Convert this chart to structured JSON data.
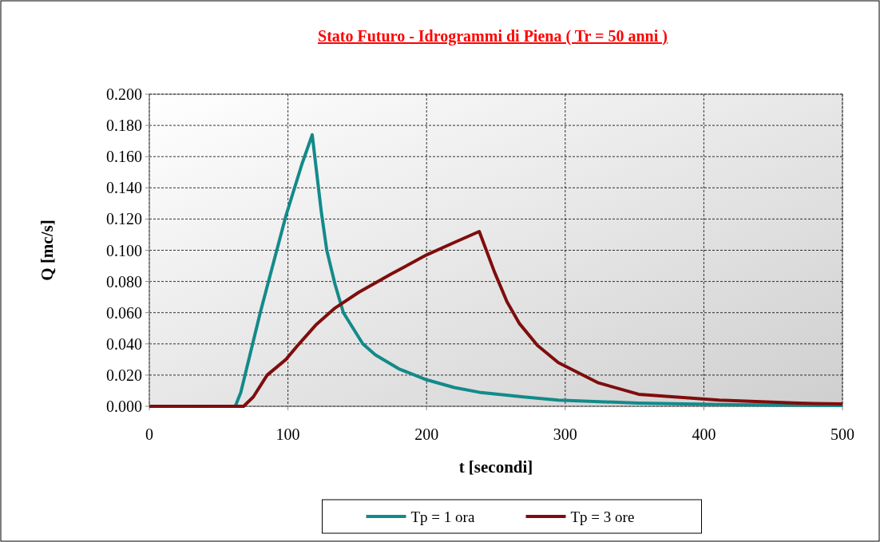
{
  "chart_data": {
    "type": "line",
    "title": "Stato Futuro - Idrogrammi  di Piena ( Tr  = 50 anni )",
    "xlabel": "t [secondi]",
    "ylabel": "Q [mc/s]",
    "xlim": [
      0,
      500
    ],
    "xticks": [
      0,
      100,
      200,
      300,
      400,
      500
    ],
    "ylim": [
      0,
      0.2
    ],
    "yticks": [
      {
        "value": 0,
        "label": "0.000"
      },
      {
        "value": 0.02,
        "label": "0.020"
      },
      {
        "value": 0.04,
        "label": "0.040"
      },
      {
        "value": 0.06,
        "label": "0.060"
      },
      {
        "value": 0.08,
        "label": "0.080"
      },
      {
        "value": 0.1,
        "label": "0.100"
      },
      {
        "value": 0.12,
        "label": "0.120"
      },
      {
        "value": 0.14,
        "label": "0.140"
      },
      {
        "value": 0.16,
        "label": "0.160"
      },
      {
        "value": 0.18,
        "label": "0.180"
      },
      {
        "value": 0.2,
        "label": "0.200"
      }
    ],
    "grid": true,
    "legend": "bottom",
    "marker": "none",
    "line_style": "solid",
    "series": [
      {
        "name": "Tp = 1 ora",
        "color": "#138a8a",
        "x": [
          0,
          62,
          66,
          80,
          98.5,
          110,
          117.5,
          124,
          128,
          134,
          140,
          154,
          163,
          180,
          200,
          220,
          238,
          270,
          295,
          353,
          420,
          500
        ],
        "values": [
          0,
          0,
          0.009,
          0.06,
          0.122,
          0.155,
          0.174,
          0.125,
          0.1,
          0.078,
          0.06,
          0.04,
          0.033,
          0.024,
          0.017,
          0.012,
          0.009,
          0.006,
          0.004,
          0.002,
          0.001,
          0.0005
        ]
      },
      {
        "name": "Tp = 3 ore",
        "color": "#7f0d0d",
        "x": [
          0,
          68,
          75,
          85,
          98.5,
          108,
          120,
          134,
          151,
          175,
          200,
          220,
          238,
          249,
          258,
          267,
          280,
          295,
          324,
          353,
          411,
          468,
          500
        ],
        "values": [
          0,
          0,
          0.006,
          0.02,
          0.03,
          0.04,
          0.052,
          0.063,
          0.073,
          0.085,
          0.097,
          0.105,
          0.112,
          0.086,
          0.067,
          0.053,
          0.039,
          0.028,
          0.015,
          0.0077,
          0.004,
          0.002,
          0.0015
        ]
      }
    ]
  }
}
